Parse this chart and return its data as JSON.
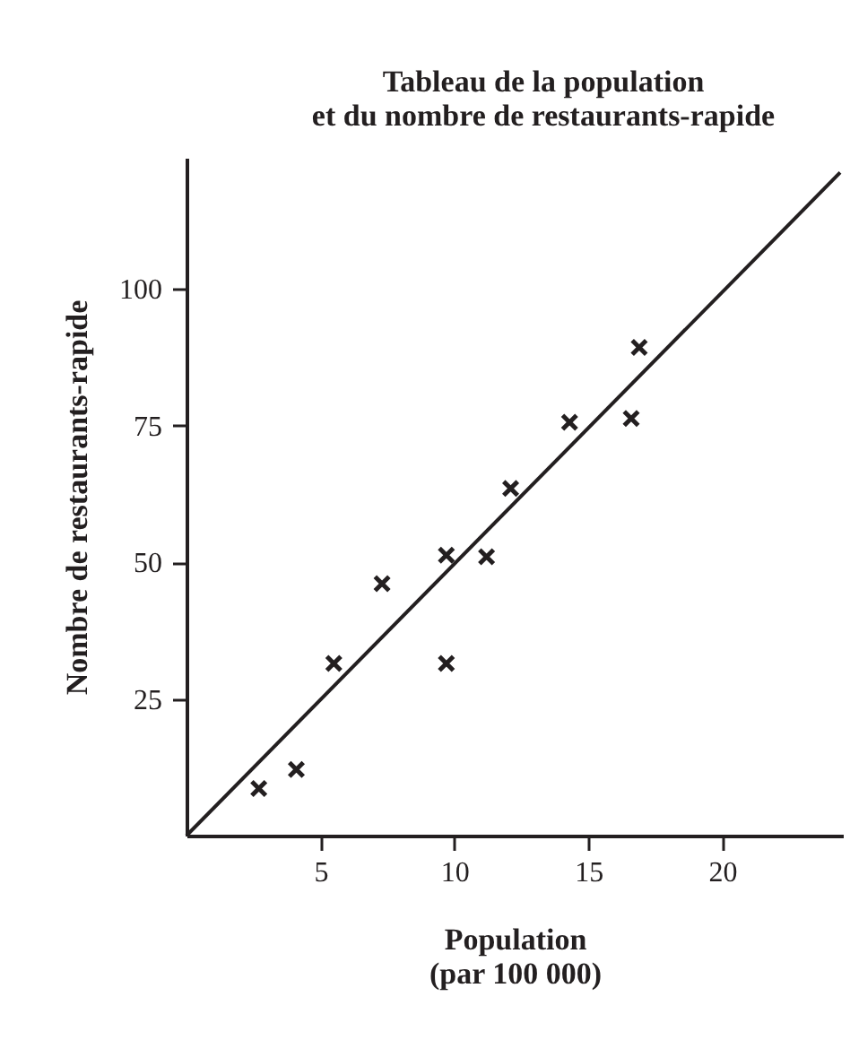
{
  "chart_data": {
    "type": "scatter",
    "title": [
      "Tableau de la population",
      "et du nombre de restaurants-rapide"
    ],
    "xlabel": [
      "Population",
      "(par 100 000)"
    ],
    "ylabel": "Nombre de restaurants-rapide",
    "grid": false,
    "x": [
      2.7,
      4.1,
      5.5,
      7.3,
      9.7,
      9.7,
      11.2,
      12.1,
      14.3,
      16.6,
      16.9
    ],
    "series": [
      {
        "marker": "cross",
        "color": "#231f20",
        "values": [
          8.6,
          12.1,
          31.5,
          46.1,
          51.3,
          31.5,
          51,
          63.5,
          75.6,
          76.3,
          89.3
        ]
      },
      {
        "type": "line",
        "marker": "none",
        "color": "#231f20",
        "x": [
          0,
          24.4
        ],
        "values": [
          0,
          121.3
        ]
      }
    ],
    "xlim": [
      0,
      24.5
    ],
    "ylim": [
      0,
      124
    ],
    "xticks": [
      5,
      10,
      15,
      20
    ],
    "yticks": [
      25,
      50,
      75,
      100
    ]
  }
}
